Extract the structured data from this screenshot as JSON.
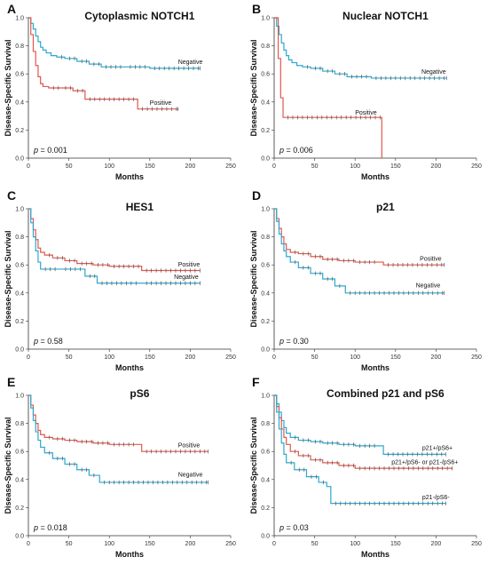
{
  "colors": {
    "blue": "#2ea8cf",
    "red": "#e2574c",
    "axis": "#333333",
    "censor": "#555555"
  },
  "chart_data": [
    {
      "type": "line",
      "letter": "A",
      "title": "Cytoplasmic NOTCH1",
      "xlabel": "Months",
      "ylabel": "Disease-Specific Survival",
      "xlim": [
        0,
        250
      ],
      "ylim": [
        0,
        1.0
      ],
      "xticks": [
        "0",
        "50",
        "100",
        "150",
        "200",
        "250"
      ],
      "yticks": [
        "0.0",
        "0.2",
        "0.4",
        "0.6",
        "0.8",
        "1.0"
      ],
      "p_prefix": "p",
      "p_value": "= 0.001",
      "series": [
        {
          "name": "Negative",
          "color": "blue",
          "x": [
            0,
            3,
            6,
            9,
            12,
            15,
            18,
            22,
            28,
            35,
            45,
            60,
            75,
            90,
            120,
            150,
            212
          ],
          "y": [
            1.0,
            0.96,
            0.92,
            0.87,
            0.83,
            0.79,
            0.77,
            0.75,
            0.73,
            0.72,
            0.71,
            0.69,
            0.67,
            0.65,
            0.65,
            0.64,
            0.64
          ],
          "label_at": [
            185,
            0.67
          ]
        },
        {
          "name": "Positive",
          "color": "red",
          "x": [
            0,
            3,
            6,
            9,
            12,
            15,
            18,
            25,
            40,
            55,
            70,
            135,
            185
          ],
          "y": [
            1.0,
            0.88,
            0.76,
            0.66,
            0.58,
            0.53,
            0.51,
            0.5,
            0.5,
            0.48,
            0.42,
            0.35,
            0.35
          ],
          "label_at": [
            150,
            0.38
          ]
        }
      ]
    },
    {
      "type": "line",
      "letter": "B",
      "title": "Nuclear NOTCH1",
      "xlabel": "Months",
      "ylabel": "Disease-Specific Survival",
      "xlim": [
        0,
        250
      ],
      "ylim": [
        0,
        1.0
      ],
      "xticks": [
        "0",
        "50",
        "100",
        "150",
        "200",
        "250"
      ],
      "yticks": [
        "0.0",
        "0.2",
        "0.4",
        "0.6",
        "0.8",
        "1.0"
      ],
      "p_prefix": "p",
      "p_value": "= 0.006",
      "series": [
        {
          "name": "Negative",
          "color": "blue",
          "x": [
            0,
            3,
            6,
            9,
            12,
            15,
            18,
            22,
            28,
            35,
            45,
            60,
            75,
            90,
            120,
            213
          ],
          "y": [
            1.0,
            0.94,
            0.88,
            0.82,
            0.77,
            0.73,
            0.7,
            0.68,
            0.66,
            0.65,
            0.64,
            0.62,
            0.6,
            0.58,
            0.57,
            0.57
          ],
          "label_at": [
            182,
            0.6
          ]
        },
        {
          "name": "Positive",
          "color": "red",
          "x": [
            0,
            5,
            8,
            11,
            133,
            133
          ],
          "y": [
            1.0,
            0.71,
            0.43,
            0.29,
            0.29,
            0.0
          ],
          "label_at": [
            100,
            0.31
          ]
        }
      ]
    },
    {
      "type": "line",
      "letter": "C",
      "title": "HES1",
      "xlabel": "Months",
      "ylabel": "Disease-Specific Survival",
      "xlim": [
        0,
        250
      ],
      "ylim": [
        0,
        1.0
      ],
      "xticks": [
        "0",
        "50",
        "100",
        "150",
        "200",
        "250"
      ],
      "yticks": [
        "0.0",
        "0.2",
        "0.4",
        "0.6",
        "0.8",
        "1.0"
      ],
      "p_prefix": "p",
      "p_value": "= 0.58",
      "series": [
        {
          "name": "Positive",
          "color": "red",
          "x": [
            0,
            3,
            6,
            9,
            12,
            15,
            20,
            30,
            45,
            60,
            80,
            100,
            140,
            212
          ],
          "y": [
            1.0,
            0.93,
            0.85,
            0.78,
            0.72,
            0.69,
            0.67,
            0.65,
            0.63,
            0.61,
            0.6,
            0.59,
            0.56,
            0.56
          ],
          "label_at": [
            185,
            0.59
          ]
        },
        {
          "name": "Negative",
          "color": "blue",
          "x": [
            0,
            3,
            6,
            9,
            12,
            15,
            40,
            70,
            85,
            140,
            212
          ],
          "y": [
            1.0,
            0.9,
            0.8,
            0.7,
            0.62,
            0.57,
            0.57,
            0.52,
            0.47,
            0.47,
            0.47
          ],
          "label_at": [
            180,
            0.5
          ]
        }
      ]
    },
    {
      "type": "line",
      "letter": "D",
      "title": "p21",
      "xlabel": "Months",
      "ylabel": "Disease-Specific Survival",
      "xlim": [
        0,
        250
      ],
      "ylim": [
        0,
        1.0
      ],
      "xticks": [
        "0",
        "50",
        "100",
        "150",
        "200",
        "250"
      ],
      "yticks": [
        "0.0",
        "0.2",
        "0.4",
        "0.6",
        "0.8",
        "1.0"
      ],
      "p_prefix": "p",
      "p_value": "= 0.30",
      "series": [
        {
          "name": "Positive",
          "color": "red",
          "x": [
            0,
            3,
            6,
            9,
            12,
            15,
            20,
            30,
            45,
            60,
            80,
            100,
            130,
            135,
            210
          ],
          "y": [
            1.0,
            0.93,
            0.86,
            0.8,
            0.75,
            0.71,
            0.69,
            0.68,
            0.66,
            0.64,
            0.63,
            0.62,
            0.62,
            0.6,
            0.6
          ],
          "label_at": [
            180,
            0.63
          ]
        },
        {
          "name": "Negative",
          "color": "blue",
          "x": [
            0,
            3,
            6,
            9,
            12,
            15,
            20,
            30,
            45,
            60,
            75,
            88,
            210
          ],
          "y": [
            1.0,
            0.91,
            0.82,
            0.75,
            0.7,
            0.66,
            0.62,
            0.58,
            0.54,
            0.5,
            0.45,
            0.4,
            0.4
          ],
          "label_at": [
            175,
            0.44
          ]
        }
      ]
    },
    {
      "type": "line",
      "letter": "E",
      "title": "pS6",
      "xlabel": "Months",
      "ylabel": "Disease-Specific Survival",
      "xlim": [
        0,
        250
      ],
      "ylim": [
        0,
        1.0
      ],
      "xticks": [
        "0",
        "50",
        "100",
        "150",
        "200",
        "250"
      ],
      "yticks": [
        "0.0",
        "0.2",
        "0.4",
        "0.6",
        "0.8",
        "1.0"
      ],
      "p_prefix": "p",
      "p_value": "= 0.018",
      "series": [
        {
          "name": "Positive",
          "color": "red",
          "x": [
            0,
            3,
            6,
            9,
            12,
            15,
            20,
            30,
            45,
            60,
            80,
            100,
            135,
            140,
            222
          ],
          "y": [
            1.0,
            0.93,
            0.86,
            0.8,
            0.75,
            0.72,
            0.7,
            0.69,
            0.68,
            0.67,
            0.66,
            0.65,
            0.65,
            0.6,
            0.6
          ],
          "label_at": [
            185,
            0.63
          ]
        },
        {
          "name": "Negative",
          "color": "blue",
          "x": [
            0,
            3,
            6,
            9,
            12,
            15,
            20,
            30,
            45,
            60,
            75,
            88,
            222
          ],
          "y": [
            1.0,
            0.91,
            0.82,
            0.74,
            0.68,
            0.63,
            0.59,
            0.55,
            0.51,
            0.47,
            0.43,
            0.38,
            0.38
          ],
          "label_at": [
            185,
            0.42
          ]
        }
      ]
    },
    {
      "type": "line",
      "letter": "F",
      "title": "Combined p21 and pS6",
      "xlabel": "Months",
      "ylabel": "Disease-Specific Survival",
      "xlim": [
        0,
        250
      ],
      "ylim": [
        0,
        1.0
      ],
      "xticks": [
        "0",
        "50",
        "100",
        "150",
        "200",
        "250"
      ],
      "yticks": [
        "0.0",
        "0.2",
        "0.4",
        "0.6",
        "0.8",
        "1.0"
      ],
      "p_prefix": "p",
      "p_value": "= 0.03",
      "series": [
        {
          "name": "p21+/pS6+",
          "color": "blue",
          "x": [
            0,
            3,
            6,
            9,
            12,
            15,
            20,
            30,
            45,
            60,
            80,
            100,
            130,
            135,
            212
          ],
          "y": [
            1.0,
            0.94,
            0.88,
            0.82,
            0.77,
            0.73,
            0.7,
            0.68,
            0.67,
            0.66,
            0.65,
            0.64,
            0.64,
            0.58,
            0.58
          ],
          "label_at": [
            183,
            0.61
          ]
        },
        {
          "name": "p21+/pS6- or p21-/pS6+",
          "color": "red",
          "x": [
            0,
            3,
            6,
            9,
            12,
            15,
            20,
            30,
            45,
            60,
            80,
            100,
            220
          ],
          "y": [
            1.0,
            0.92,
            0.84,
            0.76,
            0.7,
            0.65,
            0.6,
            0.57,
            0.54,
            0.52,
            0.5,
            0.48,
            0.48
          ],
          "label_at": [
            145,
            0.51
          ]
        },
        {
          "name": "p21-/pS6-",
          "color": "blue",
          "x": [
            0,
            3,
            6,
            9,
            12,
            15,
            25,
            40,
            55,
            65,
            70,
            212
          ],
          "y": [
            1.0,
            0.88,
            0.76,
            0.66,
            0.58,
            0.52,
            0.47,
            0.42,
            0.38,
            0.35,
            0.23,
            0.23
          ],
          "label_at": [
            183,
            0.26
          ]
        }
      ]
    }
  ]
}
